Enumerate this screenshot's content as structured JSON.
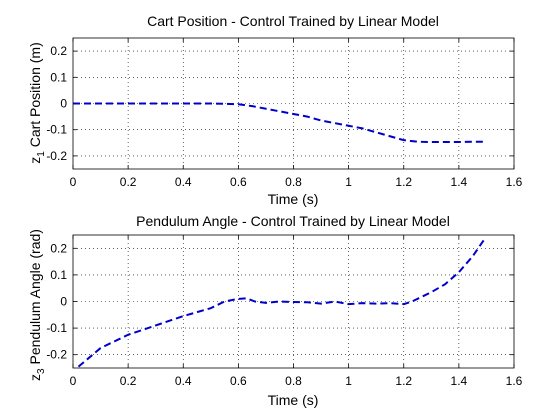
{
  "chart_data": [
    {
      "type": "line",
      "title": "Cart Position - Control Trained by Linear Model",
      "xlabel": "Time (s)",
      "ylabel_prefix": "z",
      "ylabel_subscript": "1",
      "ylabel_rest": " Cart Position (m)",
      "xlim": [
        0,
        1.6
      ],
      "ylim": [
        -0.25,
        0.25
      ],
      "xticks": [
        0,
        0.2,
        0.4,
        0.6,
        0.8,
        1,
        1.2,
        1.4,
        1.6
      ],
      "xtick_labels": [
        "0",
        "0.2",
        "0.4",
        "0.6",
        "0.8",
        "1",
        "1.2",
        "1.4",
        "1.6"
      ],
      "yticks": [
        -0.2,
        -0.1,
        0,
        0.1,
        0.2
      ],
      "ytick_labels": [
        "-0.2",
        "-0.1",
        "0",
        "0.1",
        "0.2"
      ],
      "grid": true,
      "series": [
        {
          "color": "#0000cc",
          "style": "dashed",
          "x": [
            0,
            0.1,
            0.2,
            0.3,
            0.4,
            0.5,
            0.55,
            0.6,
            0.65,
            0.7,
            0.75,
            0.8,
            0.85,
            0.9,
            0.95,
            1.0,
            1.05,
            1.1,
            1.15,
            1.2,
            1.25,
            1.3,
            1.35,
            1.4,
            1.45,
            1.5
          ],
          "y": [
            0,
            0,
            0,
            0,
            0,
            0,
            -0.001,
            -0.003,
            -0.01,
            -0.02,
            -0.03,
            -0.04,
            -0.05,
            -0.065,
            -0.075,
            -0.085,
            -0.095,
            -0.11,
            -0.125,
            -0.14,
            -0.146,
            -0.147,
            -0.147,
            -0.147,
            -0.146,
            -0.146
          ]
        }
      ]
    },
    {
      "type": "line",
      "title": "Pendulum Angle - Control Trained by Linear Model",
      "xlabel": "Time (s)",
      "ylabel_prefix": "z",
      "ylabel_subscript": "3",
      "ylabel_rest": " Pendulum Angle (rad)",
      "xlim": [
        0,
        1.6
      ],
      "ylim": [
        -0.25,
        0.25
      ],
      "xticks": [
        0,
        0.2,
        0.4,
        0.6,
        0.8,
        1,
        1.2,
        1.4,
        1.6
      ],
      "xtick_labels": [
        "0",
        "0.2",
        "0.4",
        "0.6",
        "0.8",
        "1",
        "1.2",
        "1.4",
        "1.6"
      ],
      "yticks": [
        -0.2,
        -0.1,
        0,
        0.1,
        0.2
      ],
      "ytick_labels": [
        "-0.2",
        "-0.1",
        "0",
        "0.1",
        "0.2"
      ],
      "grid": true,
      "series": [
        {
          "color": "#0000cc",
          "style": "dashed",
          "x": [
            0.02,
            0.1,
            0.2,
            0.3,
            0.4,
            0.5,
            0.55,
            0.6,
            0.63,
            0.66,
            0.7,
            0.75,
            0.8,
            0.85,
            0.9,
            0.95,
            1.0,
            1.05,
            1.1,
            1.15,
            1.2,
            1.23,
            1.27,
            1.3,
            1.35,
            1.4,
            1.45,
            1.49
          ],
          "y": [
            -0.245,
            -0.175,
            -0.125,
            -0.09,
            -0.055,
            -0.025,
            0.0,
            0.01,
            0.012,
            0.0,
            -0.005,
            0.0,
            -0.002,
            -0.003,
            -0.008,
            0.0,
            -0.01,
            -0.006,
            -0.008,
            -0.006,
            -0.01,
            0.0,
            0.02,
            0.035,
            0.065,
            0.11,
            0.17,
            0.23
          ]
        }
      ]
    }
  ]
}
